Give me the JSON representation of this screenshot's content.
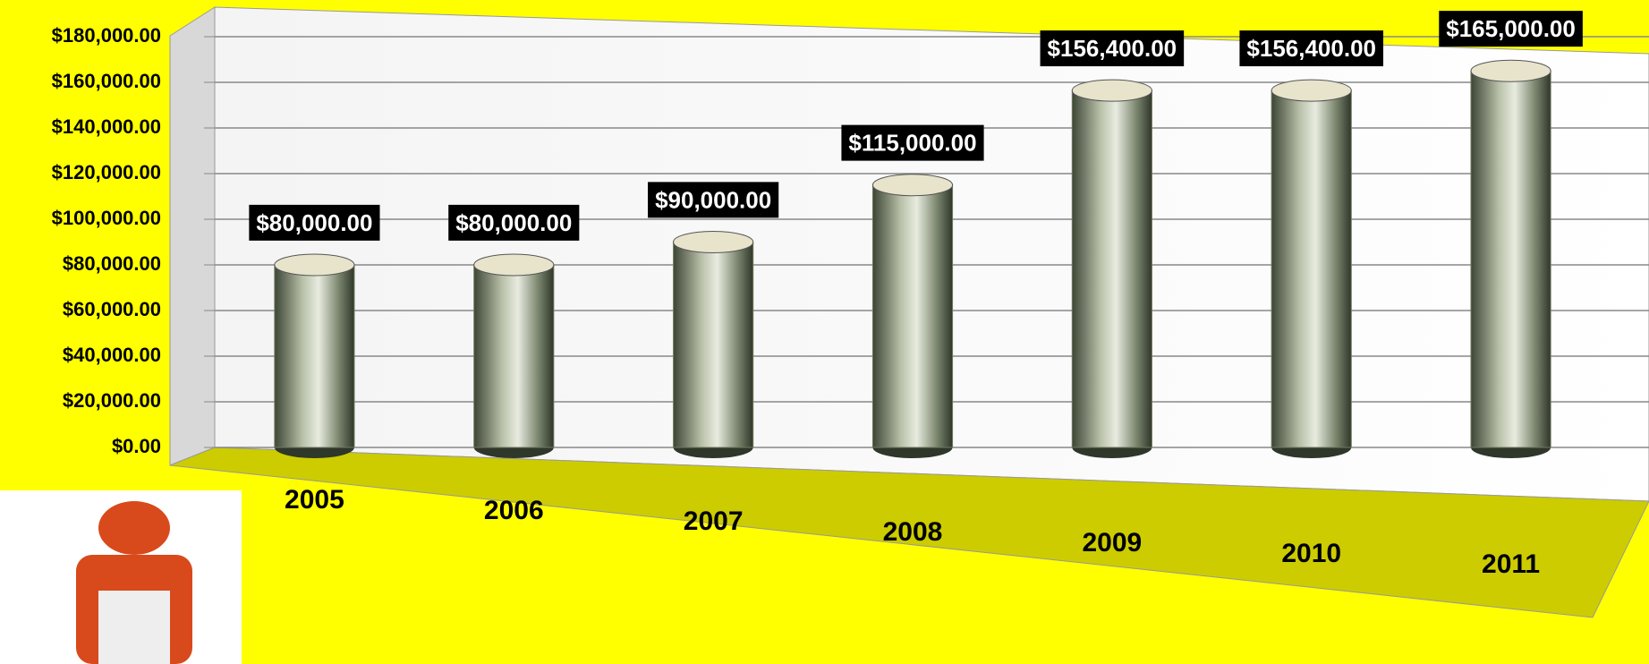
{
  "chart_data": {
    "type": "bar",
    "categories": [
      "2005",
      "2006",
      "2007",
      "2008",
      "2009",
      "2010",
      "2011"
    ],
    "values": [
      80000,
      80000,
      90000,
      115000,
      156400,
      156400,
      165000
    ],
    "value_labels": [
      "$80,000.00",
      "$80,000.00",
      "$90,000.00",
      "$115,000.00",
      "$156,400.00",
      "$156,400.00",
      "$165,000.00"
    ],
    "color": "#6f7a5c",
    "ylim": [
      0,
      180000
    ],
    "yticks": [
      {
        "value": 0,
        "label": "$0.00"
      },
      {
        "value": 20000,
        "label": "$20,000.00"
      },
      {
        "value": 40000,
        "label": "$40,000.00"
      },
      {
        "value": 60000,
        "label": "$60,000.00"
      },
      {
        "value": 80000,
        "label": "$80,000.00"
      },
      {
        "value": 100000,
        "label": "$100,000.00"
      },
      {
        "value": 120000,
        "label": "$120,000.00"
      },
      {
        "value": 140000,
        "label": "$140,000.00"
      },
      {
        "value": 160000,
        "label": "$160,000.00"
      },
      {
        "value": 180000,
        "label": "$180,000.00"
      }
    ],
    "grid": true
  }
}
